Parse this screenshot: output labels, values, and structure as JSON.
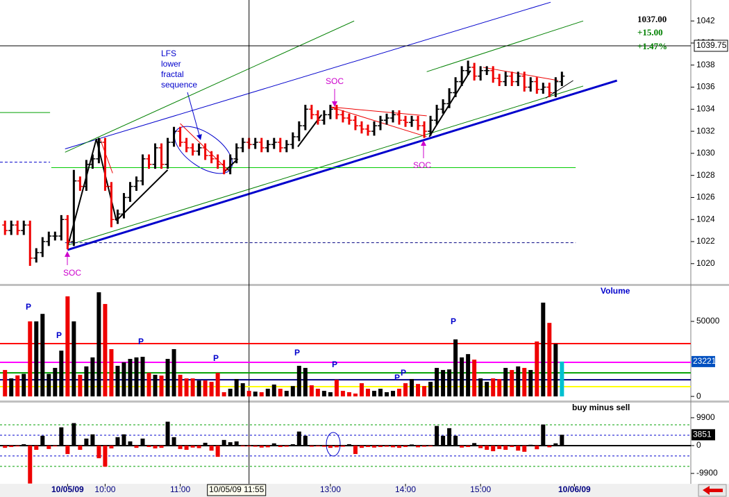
{
  "chart_data": [
    {
      "type": "ohlc",
      "x": [
        -50,
        -45,
        -40,
        -35,
        -30,
        -25,
        -20,
        -15,
        -10,
        -5,
        0,
        5,
        10,
        15,
        20,
        25,
        30,
        35,
        40,
        45,
        50,
        55,
        60,
        65,
        70,
        75,
        80,
        85,
        90,
        95,
        100,
        105,
        110,
        115,
        120,
        125,
        130,
        135,
        140,
        145,
        150,
        155,
        160,
        165,
        170,
        175,
        180,
        185,
        190,
        195,
        200,
        205,
        210,
        215,
        220,
        225,
        230,
        235,
        240,
        245,
        250,
        255,
        260,
        265,
        270,
        275,
        280,
        285,
        290,
        295,
        300,
        305,
        310,
        315,
        320,
        325,
        330,
        335,
        340,
        345,
        350,
        355,
        360,
        365,
        370,
        375,
        380,
        385,
        390,
        395
      ],
      "open": [
        1023.5,
        1023,
        1023.5,
        1023,
        1023.5,
        1020.5,
        1021,
        1022,
        1022.5,
        1022.5,
        1024,
        1022,
        1027.5,
        1027,
        1029,
        1029.5,
        1031,
        1027,
        1024,
        1024.5,
        1026,
        1027,
        1027.5,
        1029.5,
        1029,
        1030.5,
        1029,
        1031,
        1032,
        1031,
        1030.5,
        1030.2,
        1030.5,
        1029.8,
        1029.5,
        1029,
        1028.5,
        1029.5,
        1030.5,
        1031,
        1030.8,
        1031,
        1030.5,
        1030.8,
        1031,
        1030.5,
        1030.8,
        1031.5,
        1032.5,
        1034,
        1033.5,
        1033,
        1033.5,
        1034,
        1033.5,
        1033.2,
        1033,
        1032.5,
        1032.2,
        1032,
        1032.5,
        1033,
        1033.2,
        1033.5,
        1033,
        1032.8,
        1033,
        1032.5,
        1032,
        1033,
        1034,
        1034.5,
        1035.5,
        1036.5,
        1037.5,
        1037.8,
        1037,
        1037.5,
        1037.5,
        1036.8,
        1036.5,
        1037,
        1036.5,
        1037,
        1036,
        1036.5,
        1035.8,
        1036,
        1035.5,
        1036.5
      ],
      "high": [
        1023.9,
        1023.9,
        1023.9,
        1023.9,
        1023.9,
        1021.4,
        1022.4,
        1022.9,
        1022.9,
        1024.4,
        1024.4,
        1028.5,
        1027.9,
        1029.4,
        1029.9,
        1031.4,
        1031.4,
        1027.4,
        1024.9,
        1026.4,
        1027.4,
        1027.9,
        1029.9,
        1029.9,
        1030.9,
        1030.9,
        1031.4,
        1032.4,
        1032.4,
        1031.4,
        1030.9,
        1030.9,
        1030.9,
        1030.2,
        1029.9,
        1029.4,
        1029.9,
        1030.9,
        1031.4,
        1031.4,
        1031.4,
        1031.4,
        1031.2,
        1031.4,
        1031.4,
        1031.2,
        1031.9,
        1032.9,
        1034.4,
        1034.4,
        1033.9,
        1033.9,
        1034.4,
        1034.4,
        1033.9,
        1033.6,
        1033.4,
        1032.9,
        1032.6,
        1032.9,
        1033.4,
        1033.6,
        1033.9,
        1033.9,
        1033.4,
        1033.4,
        1033.4,
        1032.9,
        1033.4,
        1034.4,
        1034.9,
        1035.9,
        1036.9,
        1037.9,
        1038.4,
        1038.2,
        1037.9,
        1037.9,
        1037.9,
        1037.2,
        1037.4,
        1037.4,
        1037.4,
        1037.4,
        1036.9,
        1036.9,
        1036.4,
        1036.4,
        1036.9,
        1037.4
      ],
      "low": [
        1022.6,
        1022.6,
        1022.6,
        1022.6,
        1019.8,
        1020.1,
        1020.6,
        1021.6,
        1022.1,
        1022.1,
        1021.3,
        1021.6,
        1026.6,
        1026.6,
        1028.6,
        1029.1,
        1026.6,
        1023.3,
        1023.6,
        1024.1,
        1025.6,
        1026.6,
        1027.1,
        1028.6,
        1028.6,
        1028.6,
        1028.6,
        1030.6,
        1030.6,
        1030.1,
        1029.8,
        1029.8,
        1029.4,
        1029.1,
        1028.6,
        1028.1,
        1028.1,
        1029.1,
        1030.1,
        1030.4,
        1030.4,
        1030.1,
        1030.1,
        1030.4,
        1030.1,
        1030.1,
        1030.4,
        1031.1,
        1032.1,
        1033.1,
        1032.6,
        1032.6,
        1033.1,
        1033.1,
        1032.8,
        1032.6,
        1032.1,
        1031.8,
        1031.6,
        1031.6,
        1032.1,
        1032.6,
        1032.8,
        1032.6,
        1032.4,
        1032.4,
        1032.1,
        1031.4,
        1031.6,
        1032.6,
        1033.6,
        1034.1,
        1035.1,
        1036.1,
        1037.1,
        1036.6,
        1036.6,
        1037.1,
        1036.4,
        1036.1,
        1036.1,
        1036.1,
        1036.1,
        1035.6,
        1035.6,
        1035.4,
        1035.4,
        1035.1,
        1035.1,
        1036.1
      ],
      "close": [
        1023,
        1023.5,
        1023,
        1023.5,
        1020.5,
        1021,
        1022,
        1022.5,
        1022.5,
        1024,
        1022,
        1027.5,
        1027,
        1029,
        1029.5,
        1031,
        1027,
        1024,
        1024.5,
        1026,
        1027,
        1027.5,
        1029.5,
        1029,
        1030.5,
        1029,
        1031,
        1032,
        1031,
        1030.5,
        1030.2,
        1030.5,
        1029.8,
        1029.5,
        1029,
        1028.5,
        1029.5,
        1030.5,
        1031,
        1030.8,
        1031,
        1030.5,
        1030.8,
        1031,
        1030.5,
        1030.8,
        1031.5,
        1032.5,
        1034,
        1033.5,
        1033,
        1033.5,
        1034,
        1033.5,
        1033.2,
        1033,
        1032.5,
        1032.2,
        1032,
        1032.5,
        1033,
        1033.2,
        1033.5,
        1033,
        1032.8,
        1033,
        1032.5,
        1032,
        1033,
        1034,
        1034.5,
        1035.5,
        1036.5,
        1037.5,
        1037.8,
        1037,
        1037.5,
        1037.5,
        1036.8,
        1036.5,
        1037,
        1036.5,
        1037,
        1036,
        1036.5,
        1035.8,
        1036,
        1035.5,
        1036.5,
        1037
      ],
      "up_color": "#000000",
      "down_color": "#ee0000",
      "xlim": [
        -54,
        498
      ],
      "xticks": [
        {
          "value": 0,
          "label": "10/05/09"
        },
        {
          "value": 30,
          "label": "10:00"
        },
        {
          "value": 90,
          "label": "11:00"
        },
        {
          "value": 210,
          "label": "13:00"
        },
        {
          "value": 270,
          "label": "14:00"
        },
        {
          "value": 330,
          "label": "15:00"
        },
        {
          "value": 405,
          "label": "10/06/09"
        }
      ],
      "ylim": [
        1018.1,
        1043.9
      ],
      "yticks": [
        1020,
        1022,
        1024,
        1026,
        1028,
        1030,
        1032,
        1034,
        1036,
        1038,
        1040,
        1042
      ],
      "last": {
        "value": 1037,
        "label": "1037.00"
      },
      "change": {
        "value": 15,
        "label": "+15.00"
      },
      "change_pct": {
        "value": 1.47,
        "label": "+1.47%"
      },
      "change_color": "#008000",
      "crosshair": {
        "x": {
          "value": 145,
          "label": "10/05/09 11:55"
        },
        "y": 1039.75
      },
      "lines": [
        {
          "x": [
            0,
            439
          ],
          "y": [
            1021.25,
            1036.6
          ],
          "color": "#0000cc",
          "width": 3
        },
        {
          "x": [
            -2,
            386
          ],
          "y": [
            1030.4,
            1043.7
          ],
          "color": "#0000cc",
          "width": 1
        },
        {
          "x": [
            -2,
            229
          ],
          "y": [
            1030.1,
            1042
          ],
          "color": "#008000",
          "width": 1
        },
        {
          "x": [
            287,
            412
          ],
          "y": [
            1037.4,
            1042
          ],
          "color": "#008000",
          "width": 1
        },
        {
          "x": [
            1,
            412
          ],
          "y": [
            1021.7,
            1036.1
          ],
          "color": "#008000",
          "width": 1
        },
        {
          "x": [
            -54,
            -14
          ],
          "y": [
            1033.7,
            1033.7
          ],
          "color": "#00a000",
          "width": 1
        },
        {
          "x": [
            -54,
            -14
          ],
          "y": [
            1029.2,
            1029.2
          ],
          "color": "#0000cc",
          "width": 1,
          "dash": true
        },
        {
          "x": [
            -13,
            406
          ],
          "y": [
            1028.7,
            1028.7
          ],
          "color": "#00cc00",
          "width": 1
        },
        {
          "x": [
            -2,
            406
          ],
          "y": [
            1021.9,
            1021.9
          ],
          "color": "#000080",
          "width": 1,
          "dash": true
        },
        {
          "x": [
            0,
            23,
            39
          ],
          "y": [
            1021.5,
            1031.3,
            1023.9
          ],
          "color": "#000000",
          "width": 2
        },
        {
          "x": [
            39,
            80
          ],
          "y": [
            1023.9,
            1028.5
          ],
          "color": "#000000",
          "width": 2
        },
        {
          "x": [
            125,
            136
          ],
          "y": [
            1028.3,
            1029.5
          ],
          "color": "#000000",
          "width": 2
        },
        {
          "x": [
            184,
            203
          ],
          "y": [
            1030.6,
            1033.5
          ],
          "color": "#000000",
          "width": 2
        },
        {
          "x": [
            289,
            322
          ],
          "y": [
            1031.5,
            1037.5
          ],
          "color": "#000000",
          "width": 2
        },
        {
          "x": [
            382,
            404
          ],
          "y": [
            1035,
            1036.6
          ],
          "color": "#000000",
          "width": 1
        },
        {
          "x": [
            26,
            36
          ],
          "y": [
            1031.3,
            1028.2
          ],
          "color": "#ee0000",
          "width": 1
        },
        {
          "x": [
            90,
            128
          ],
          "y": [
            1032.7,
            1028.5
          ],
          "color": "#ee0000",
          "width": 1
        },
        {
          "x": [
            210,
            287
          ],
          "y": [
            1034.2,
            1031.5
          ],
          "color": "#ee0000",
          "width": 1
        },
        {
          "x": [
            210,
            287
          ],
          "y": [
            1034.2,
            1033.4
          ],
          "color": "#ee0000",
          "width": 1
        },
        {
          "x": [
            332,
            392
          ],
          "y": [
            1037.8,
            1036.6
          ],
          "color": "#ee0000",
          "width": 1
        }
      ],
      "note": [
        "LFS",
        "lower",
        "fractal",
        "sequence"
      ],
      "note_color": "#0000cc",
      "soc_labels": [
        "SOC",
        "SOC",
        "SOC"
      ],
      "soc_color": "#cc00cc"
    },
    {
      "type": "bar",
      "title": "Volume",
      "color_by": "price",
      "values": [
        17600,
        12000,
        14000,
        15000,
        50000,
        50000,
        55000,
        15000,
        19000,
        30500,
        66700,
        50000,
        14400,
        20000,
        26000,
        69400,
        61600,
        31500,
        20400,
        22700,
        25000,
        26000,
        26400,
        15700,
        14400,
        13900,
        25000,
        31500,
        14400,
        12000,
        12000,
        10600,
        10600,
        9700,
        15700,
        2800,
        5100,
        11600,
        8800,
        3700,
        3200,
        2800,
        5100,
        7900,
        5100,
        3700,
        6900,
        20400,
        19000,
        7400,
        5100,
        3700,
        2800,
        11100,
        3700,
        2800,
        1900,
        8800,
        5100,
        3700,
        5100,
        2800,
        3700,
        5100,
        8800,
        11600,
        8300,
        6900,
        9700,
        19000,
        17600,
        18000,
        38000,
        26000,
        28200,
        24500,
        12000,
        9700,
        12000,
        11600,
        19000,
        17600,
        20000,
        19000,
        17600,
        36600,
        62500,
        49000,
        35000,
        23221
      ],
      "up_color": "#000000",
      "down_color": "#ee0000",
      "last_color": "#00c0d0",
      "ylim": [
        -3200,
        73600
      ],
      "yticks": [
        0,
        50000
      ],
      "hlines": [
        {
          "value": 35200,
          "color": "#ff0000"
        },
        {
          "value": 22700,
          "color": "#ff00ff"
        },
        {
          "value": 15700,
          "color": "#00a000"
        },
        {
          "value": 11100,
          "color": "#000080"
        },
        {
          "value": 6500,
          "color": "#ffff00"
        }
      ],
      "p_labels": [
        "P",
        "P",
        "P",
        "P",
        "P",
        "P",
        "P",
        "P",
        "P"
      ],
      "p_color": "#0000cc"
    },
    {
      "type": "bar",
      "title": "buy minus sell",
      "color_by": "sign",
      "values": [
        -800,
        -500,
        -300,
        500,
        -13500,
        -1500,
        3500,
        -1200,
        -300,
        6500,
        -3000,
        8000,
        -1500,
        2500,
        4000,
        -4500,
        -7500,
        -1000,
        3000,
        4000,
        1500,
        -800,
        2500,
        -500,
        -1000,
        -800,
        8500,
        3000,
        -1200,
        -1500,
        -700,
        -900,
        1000,
        -1800,
        -4000,
        2000,
        1200,
        1500,
        -300,
        -300,
        -400,
        -700,
        -600,
        800,
        -500,
        -400,
        500,
        5000,
        3500,
        -400,
        -300,
        -400,
        -800,
        -600,
        -400,
        500,
        -3000,
        -800,
        -500,
        -700,
        -500,
        -400,
        -600,
        -800,
        -500,
        400,
        -600,
        -400,
        -300,
        7000,
        3500,
        6200,
        3500,
        -700,
        -500,
        900,
        -900,
        -1500,
        -2000,
        -1200,
        -1500,
        -500,
        -1800,
        -2200,
        300,
        -1300,
        7500,
        -600,
        800,
        3851
      ],
      "up_color": "#000000",
      "down_color": "#ee0000",
      "ylim": [
        -13600,
        15300
      ],
      "yticks": [
        -9900,
        0,
        9900
      ],
      "hlines": [
        {
          "value": 7400,
          "color": "#00a000",
          "dash": true
        },
        {
          "value": 3700,
          "color": "#0000cc",
          "dash": true
        },
        {
          "value": 0,
          "color": "#000000"
        },
        {
          "value": -3700,
          "color": "#0000cc",
          "dash": true
        },
        {
          "value": -7400,
          "color": "#00a000",
          "dash": true
        }
      ]
    }
  ]
}
